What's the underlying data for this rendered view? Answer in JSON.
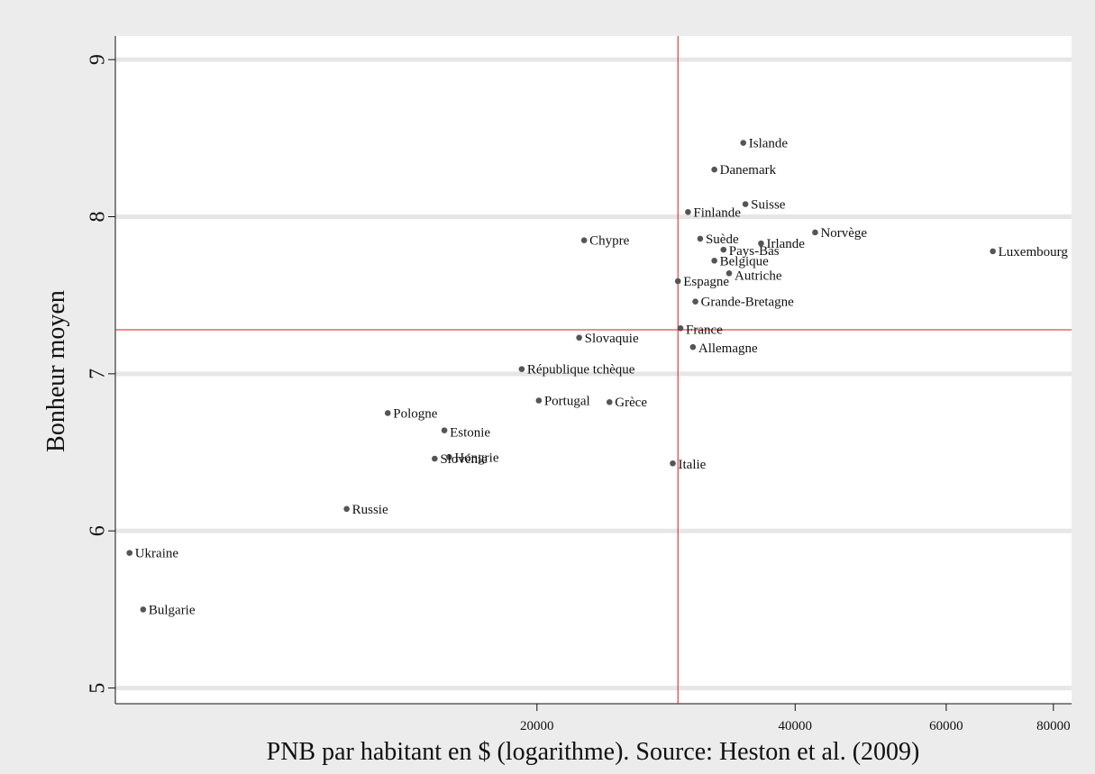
{
  "chart_data": {
    "type": "scatter",
    "xlabel": "PNB par habitant en $ (logarithme). Source: Heston et al. (2009)",
    "ylabel": "Bonheur moyen",
    "x_scale": "log",
    "xlim": [
      6450,
      84000
    ],
    "ylim": [
      4.9,
      9.15
    ],
    "xticks": [
      20000,
      40000,
      60000,
      80000
    ],
    "yticks": [
      5,
      6,
      7,
      8,
      9
    ],
    "grid": "horizontal",
    "reference_lines": {
      "x": 29200,
      "y": 7.28,
      "color": "#d7191c"
    },
    "colors": {
      "marker": "#555555",
      "grid": "#e6e6e6",
      "background": "#ececec",
      "plot_background": "#ffffff"
    },
    "points": [
      {
        "label": "Islande",
        "x": 34800,
        "y": 8.47
      },
      {
        "label": "Danemark",
        "x": 32200,
        "y": 8.3
      },
      {
        "label": "Suisse",
        "x": 35000,
        "y": 8.08
      },
      {
        "label": "Finlande",
        "x": 30000,
        "y": 8.03
      },
      {
        "label": "Norvège",
        "x": 42200,
        "y": 7.9
      },
      {
        "label": "Chypre",
        "x": 22700,
        "y": 7.85
      },
      {
        "label": "Suède",
        "x": 31000,
        "y": 7.86
      },
      {
        "label": "Irlande",
        "x": 36500,
        "y": 7.83
      },
      {
        "label": "Pays-Bas",
        "x": 33000,
        "y": 7.79
      },
      {
        "label": "Luxembourg",
        "x": 68000,
        "y": 7.78
      },
      {
        "label": "Belgique",
        "x": 32200,
        "y": 7.72
      },
      {
        "label": "Autriche",
        "x": 33500,
        "y": 7.64
      },
      {
        "label": "Espagne",
        "x": 29200,
        "y": 7.59
      },
      {
        "label": "Grande-Bretagne",
        "x": 30600,
        "y": 7.46
      },
      {
        "label": "France",
        "x": 29400,
        "y": 7.29
      },
      {
        "label": "Slovaquie",
        "x": 22400,
        "y": 7.23
      },
      {
        "label": "Allemagne",
        "x": 30400,
        "y": 7.17
      },
      {
        "label": "République tchèque",
        "x": 19200,
        "y": 7.03
      },
      {
        "label": "Portugal",
        "x": 20100,
        "y": 6.83
      },
      {
        "label": "Grèce",
        "x": 24300,
        "y": 6.82
      },
      {
        "label": "Pologne",
        "x": 13400,
        "y": 6.75
      },
      {
        "label": "Estonie",
        "x": 15600,
        "y": 6.64
      },
      {
        "label": "Hongrie",
        "x": 15800,
        "y": 6.47
      },
      {
        "label": "Slovénie",
        "x": 15200,
        "y": 6.46
      },
      {
        "label": "Italie",
        "x": 28800,
        "y": 6.43
      },
      {
        "label": "Russie",
        "x": 12000,
        "y": 6.14
      },
      {
        "label": "Ukraine",
        "x": 6700,
        "y": 5.86
      },
      {
        "label": "Bulgarie",
        "x": 6950,
        "y": 5.5
      }
    ]
  }
}
